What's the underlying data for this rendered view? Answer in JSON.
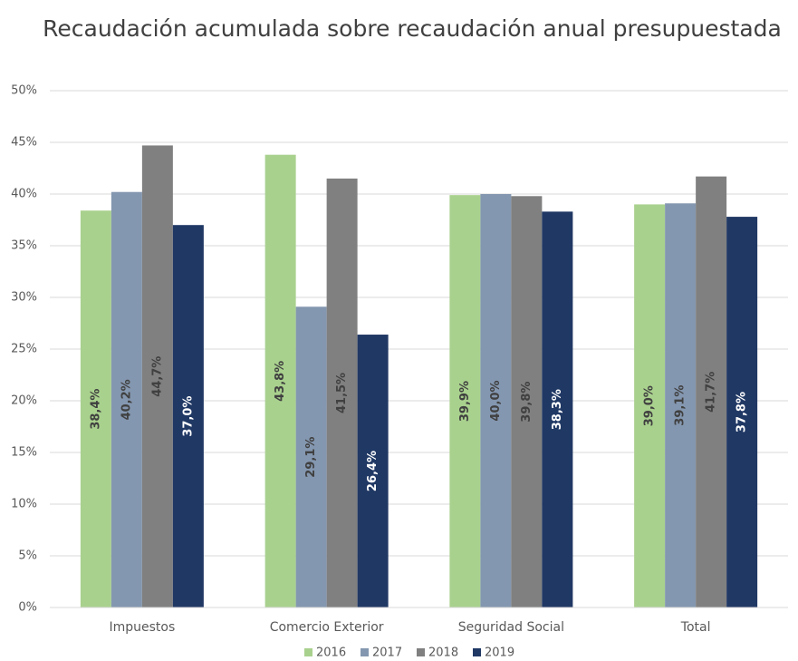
{
  "chart_data": {
    "type": "bar",
    "title": "Recaudación acumulada sobre recaudación anual presupuestada",
    "categories": [
      "Impuestos",
      "Comercio Exterior",
      "Seguridad Social",
      "Total"
    ],
    "series": [
      {
        "name": "2016",
        "color": "#a9d18e",
        "values": [
          38.4,
          43.8,
          39.9,
          39.0
        ],
        "value_labels": [
          "38,4%",
          "43,8%",
          "39,9%",
          "39,0%"
        ]
      },
      {
        "name": "2017",
        "color": "#8497b0",
        "values": [
          40.2,
          29.1,
          40.0,
          39.1
        ],
        "value_labels": [
          "40,2%",
          "29,1%",
          "40,0%",
          "39,1%"
        ]
      },
      {
        "name": "2018",
        "color": "#808080",
        "values": [
          44.7,
          41.5,
          39.8,
          41.7
        ],
        "value_labels": [
          "44,7%",
          "41,5%",
          "39,8%",
          "41,7%"
        ]
      },
      {
        "name": "2019",
        "color": "#203864",
        "values": [
          37.0,
          26.4,
          38.3,
          37.8
        ],
        "value_labels": [
          "37,0%",
          "26,4%",
          "38,3%",
          "37,8%"
        ]
      }
    ],
    "ylim": [
      0,
      50
    ],
    "yticks": [
      {
        "value": 0,
        "label": "0%"
      },
      {
        "value": 5,
        "label": "5%"
      },
      {
        "value": 10,
        "label": "10%"
      },
      {
        "value": 15,
        "label": "15%"
      },
      {
        "value": 20,
        "label": "20%"
      },
      {
        "value": 25,
        "label": "25%"
      },
      {
        "value": 30,
        "label": "30%"
      },
      {
        "value": 35,
        "label": "35%"
      },
      {
        "value": 40,
        "label": "40%"
      },
      {
        "value": 45,
        "label": "45%"
      },
      {
        "value": 50,
        "label": "50%"
      }
    ],
    "grid": true,
    "legend": "bottom"
  }
}
